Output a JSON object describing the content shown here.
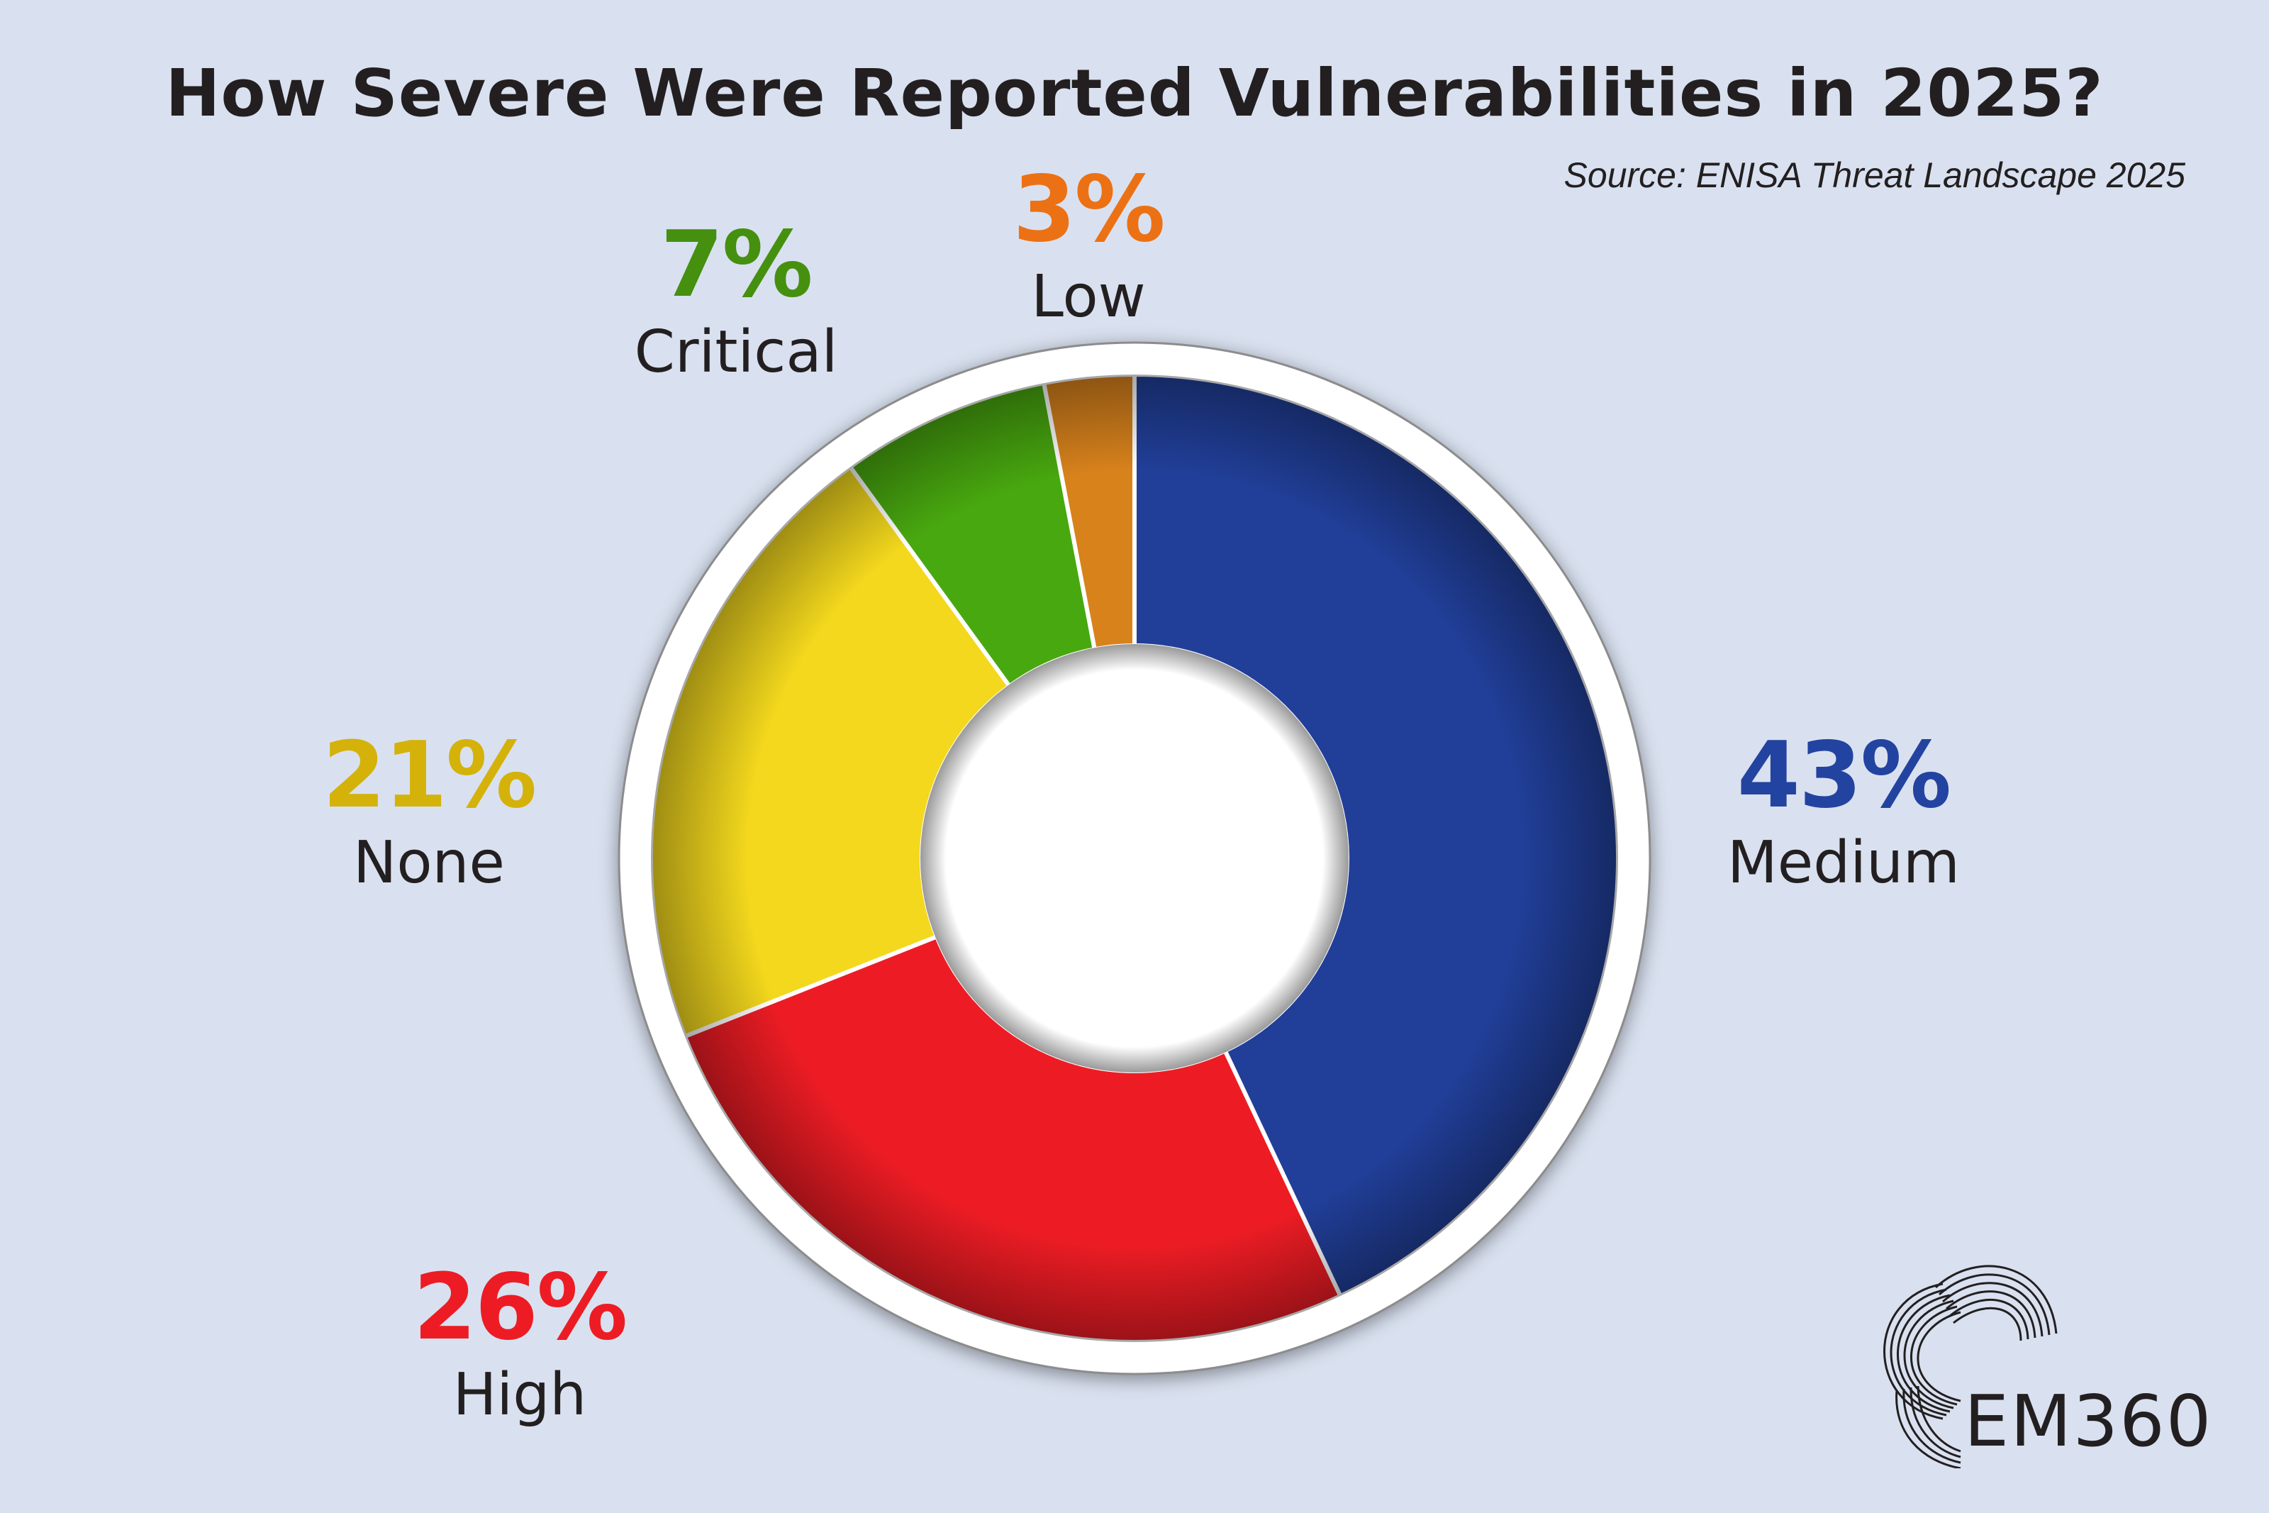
{
  "title": "How Severe Were Reported Vulnerabilities in 2025?",
  "source": "Source: ENISA Threat Landscape 2025",
  "logo": {
    "text": "EM360",
    "icon": "em360-wave-logo-icon"
  },
  "colors": {
    "background": "#d9e1f0",
    "medium": "#213f99",
    "high": "#ed1c24",
    "none": "#f3d81d",
    "critical": "#48a80f",
    "low": "#d8821c",
    "label_medium": "#2343a0",
    "label_high": "#ed1c24",
    "label_none": "#d4b20a",
    "label_critical": "#45900f",
    "label_low": "#ec7114",
    "text": "#231f20"
  },
  "labels": {
    "medium": {
      "pct": "43%",
      "name": "Medium"
    },
    "high": {
      "pct": "26%",
      "name": "High"
    },
    "none": {
      "pct": "21%",
      "name": "None"
    },
    "critical": {
      "pct": "7%",
      "name": "Critical"
    },
    "low": {
      "pct": "3%",
      "name": "Low"
    }
  },
  "chart_data": {
    "type": "pie",
    "variant": "donut",
    "title": "How Severe Were Reported Vulnerabilities in 2025?",
    "subtitle": "Source: ENISA Threat Landscape 2025",
    "categories": [
      "Medium",
      "High",
      "None",
      "Critical",
      "Low"
    ],
    "values": [
      43,
      26,
      21,
      7,
      3
    ],
    "unit": "%",
    "start_angle": "12 o'clock",
    "direction": "clockwise",
    "colors": [
      "#213f99",
      "#ed1c24",
      "#f3d81d",
      "#48a80f",
      "#d8821c"
    ],
    "legend": "none (direct labels)"
  }
}
